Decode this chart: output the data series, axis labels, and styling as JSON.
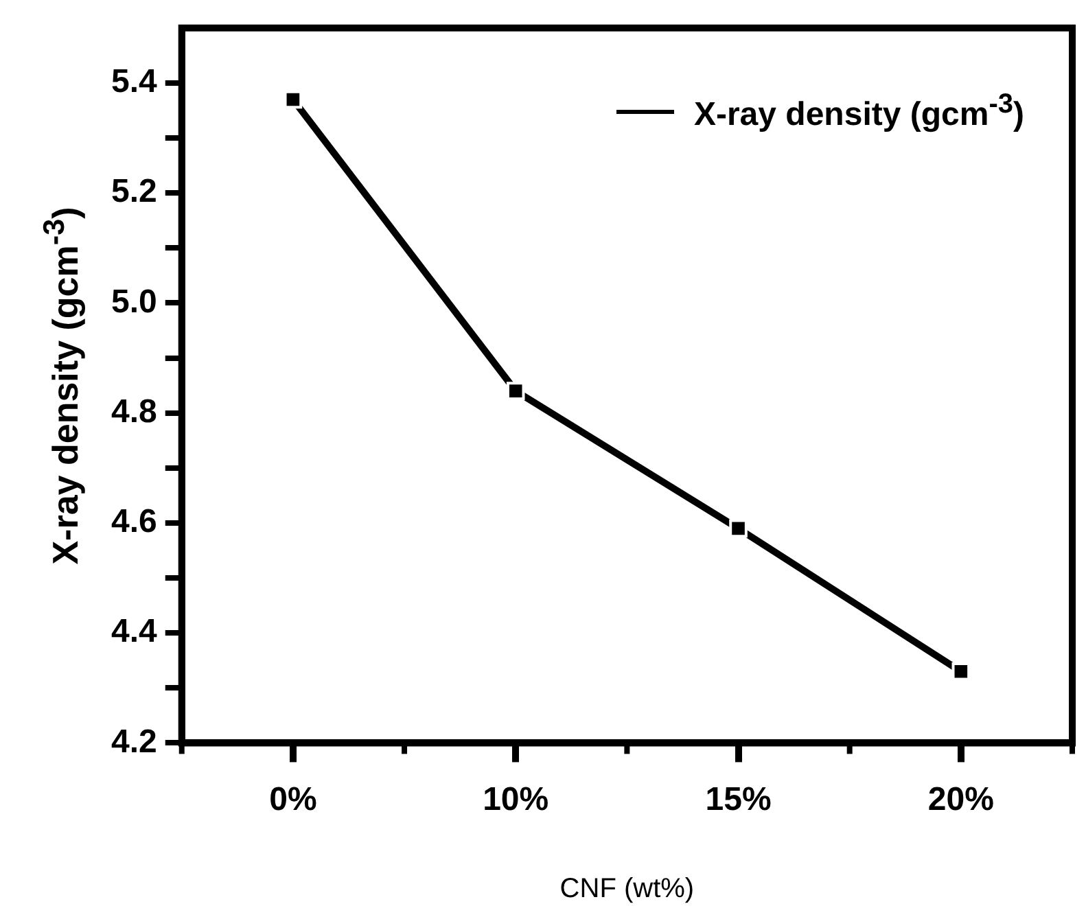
{
  "chart_data": {
    "type": "line",
    "xlabel": "CNF (wt%)",
    "ylabel": "X-ray density (gcm$^{-3}$)",
    "categories": [
      "0%",
      "10%",
      "15%",
      "20%"
    ],
    "series": [
      {
        "name": "X-ray density (gcm$^{-3}$)",
        "color": "#000000",
        "values": [
          5.37,
          4.84,
          4.59,
          4.33
        ]
      }
    ],
    "ylim": [
      4.2,
      5.5
    ],
    "yticks": [
      4.2,
      {
        "value": 4.3,
        "label": null
      },
      4.4,
      {
        "value": 4.5,
        "label": null
      },
      4.6,
      {
        "value": 4.7,
        "label": null
      },
      4.8,
      {
        "value": 4.9,
        "label": null
      },
      {
        "value": 5.0,
        "label": "5.0"
      },
      {
        "value": 5.1,
        "label": null
      },
      5.2,
      {
        "value": 5.3,
        "label": null
      },
      5.4
    ],
    "legend": "top right",
    "marker": "square",
    "line_style": "solid"
  }
}
